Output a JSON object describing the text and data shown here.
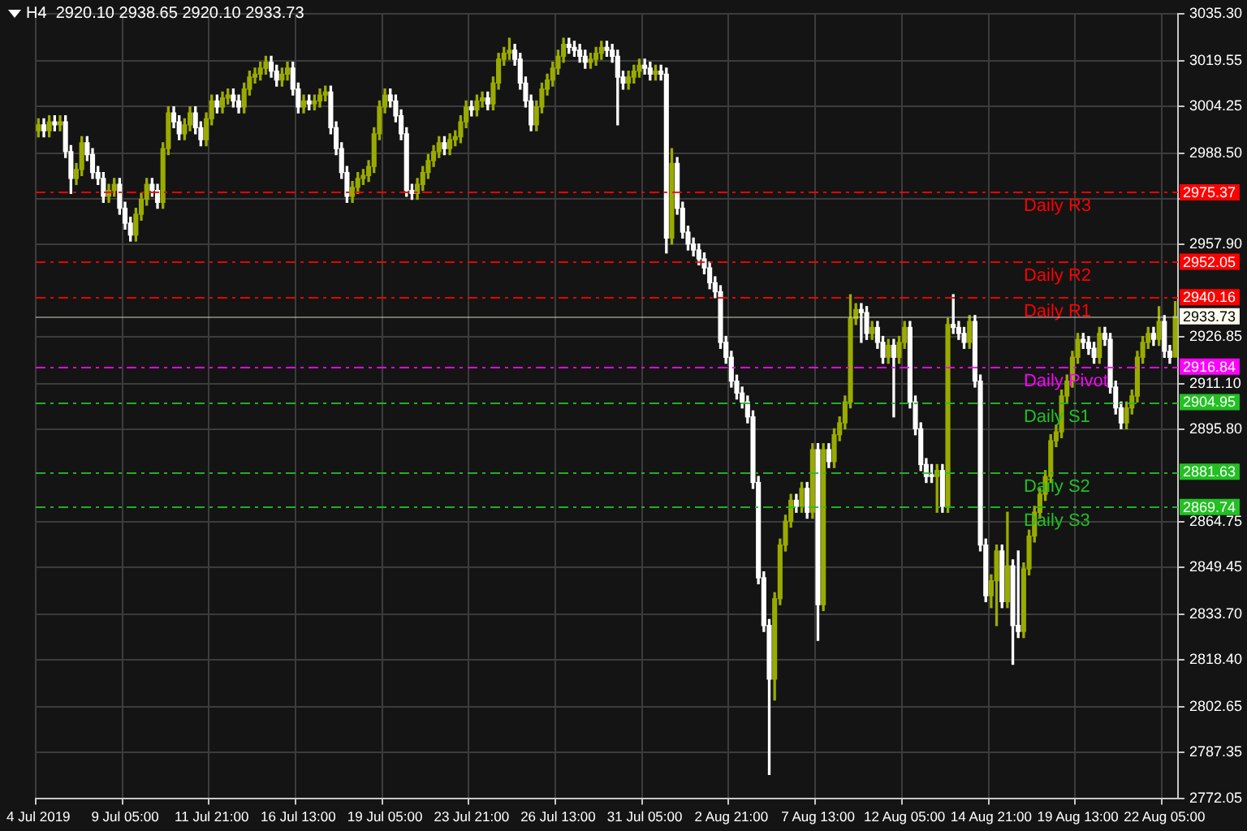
{
  "chart_data": {
    "type": "candlestick",
    "title": "H4  2920.10 2938.65 2920.10 2933.73",
    "categories": [
      "4 Jul 2019",
      null,
      null,
      null,
      null,
      null,
      null,
      null,
      null,
      null,
      null,
      null,
      null,
      null,
      null,
      null,
      "9 Jul 05:00",
      null,
      null,
      null,
      null,
      null,
      null,
      null,
      null,
      null,
      null,
      null,
      null,
      null,
      null,
      null,
      "11 Jul 21:00",
      null,
      null,
      null,
      null,
      null,
      null,
      null,
      null,
      null,
      null,
      null,
      null,
      null,
      null,
      null,
      "16 Jul 13:00",
      null,
      null,
      null,
      null,
      null,
      null,
      null,
      null,
      null,
      null,
      null,
      null,
      null,
      null,
      null,
      "19 Jul 05:00",
      null,
      null,
      null,
      null,
      null,
      null,
      null,
      null,
      null,
      null,
      null,
      null,
      null,
      null,
      null,
      "23 Jul 21:00",
      null,
      null,
      null,
      null,
      null,
      null,
      null,
      null,
      null,
      null,
      null,
      null,
      null,
      null,
      null,
      "26 Jul 13:00",
      null,
      null,
      null,
      null,
      null,
      null,
      null,
      null,
      null,
      null,
      null,
      null,
      null,
      null,
      null,
      "31 Jul 05:00",
      null,
      null,
      null,
      null,
      null,
      null,
      null,
      null,
      null,
      null,
      null,
      null,
      null,
      null,
      null,
      "2 Aug 21:00",
      null,
      null,
      null,
      null,
      null,
      null,
      null,
      null,
      null,
      null,
      null,
      null,
      null,
      null,
      null,
      "7 Aug 13:00",
      null,
      null,
      null,
      null,
      null,
      null,
      null,
      null,
      null,
      null,
      null,
      null,
      null,
      null,
      null,
      "12 Aug 05:00",
      null,
      null,
      null,
      null,
      null,
      null,
      null,
      null,
      null,
      null,
      null,
      null,
      null,
      null,
      null,
      "14 Aug 21:00",
      null,
      null,
      null,
      null,
      null,
      null,
      null,
      null,
      null,
      null,
      null,
      null,
      null,
      null,
      null,
      "19 Aug 13:00",
      null,
      null,
      null,
      null,
      null,
      null,
      null,
      null,
      null,
      null,
      null,
      null,
      null,
      null,
      null,
      "22 Aug 05:00",
      null,
      null
    ],
    "ohlc": [
      [
        2996,
        3000,
        2994,
        2998
      ],
      [
        2998,
        3000,
        2994,
        2996
      ],
      [
        2996,
        3001,
        2994,
        2999
      ],
      [
        2999,
        3001,
        2996,
        2998
      ],
      [
        2998,
        3001,
        2996,
        2999
      ],
      [
        2999,
        3001,
        2987,
        2989
      ],
      [
        2989,
        2991,
        2975,
        2980
      ],
      [
        2980,
        2985,
        2978,
        2983
      ],
      [
        2983,
        2994,
        2981,
        2992
      ],
      [
        2992,
        2994,
        2986,
        2988
      ],
      [
        2988,
        2990,
        2980,
        2982
      ],
      [
        2982,
        2984,
        2978,
        2980
      ],
      [
        2980,
        2982,
        2972,
        2974
      ],
      [
        2974,
        2978,
        2972,
        2976
      ],
      [
        2976,
        2980,
        2974,
        2978
      ],
      [
        2978,
        2980,
        2968,
        2970
      ],
      [
        2970,
        2972,
        2963,
        2965
      ],
      [
        2965,
        2967,
        2959,
        2961
      ],
      [
        2961,
        2970,
        2959,
        2968
      ],
      [
        2968,
        2975,
        2966,
        2973
      ],
      [
        2973,
        2980,
        2971,
        2978
      ],
      [
        2978,
        2980,
        2974,
        2976
      ],
      [
        2976,
        2978,
        2970,
        2972
      ],
      [
        2972,
        2992,
        2970,
        2990
      ],
      [
        2990,
        3004,
        2988,
        3002
      ],
      [
        3002,
        3004,
        2997,
        2999
      ],
      [
        2999,
        3001,
        2993,
        2995
      ],
      [
        2995,
        3000,
        2993,
        2998
      ],
      [
        2998,
        3004,
        2996,
        3002
      ],
      [
        3002,
        3004,
        2995,
        2997
      ],
      [
        2997,
        2999,
        2991,
        2993
      ],
      [
        2993,
        3002,
        2991,
        3000
      ],
      [
        3000,
        3008,
        2998,
        3006
      ],
      [
        3006,
        3008,
        3002,
        3004
      ],
      [
        3004,
        3009,
        3002,
        3007
      ],
      [
        3007,
        3010,
        3005,
        3008
      ],
      [
        3008,
        3010,
        3004,
        3006
      ],
      [
        3006,
        3008,
        3002,
        3004
      ],
      [
        3004,
        3012,
        3002,
        3010
      ],
      [
        3010,
        3016,
        3008,
        3014
      ],
      [
        3014,
        3017,
        3012,
        3015
      ],
      [
        3015,
        3019,
        3013,
        3017
      ],
      [
        3017,
        3021,
        3015,
        3019
      ],
      [
        3019,
        3021,
        3014,
        3016
      ],
      [
        3016,
        3018,
        3011,
        3013
      ],
      [
        3013,
        3017,
        3011,
        3015
      ],
      [
        3015,
        3019,
        3013,
        3017
      ],
      [
        3017,
        3019,
        3008,
        3010
      ],
      [
        3010,
        3012,
        3002,
        3004
      ],
      [
        3004,
        3008,
        3002,
        3006
      ],
      [
        3006,
        3008,
        3003,
        3005
      ],
      [
        3005,
        3008,
        3003,
        3006
      ],
      [
        3006,
        3010,
        3004,
        3008
      ],
      [
        3008,
        3011,
        3006,
        3009
      ],
      [
        3009,
        3011,
        2995,
        2997
      ],
      [
        2997,
        2999,
        2988,
        2990
      ],
      [
        2990,
        2992,
        2980,
        2982
      ],
      [
        2982,
        2984,
        2972,
        2974
      ],
      [
        2974,
        2979,
        2972,
        2977
      ],
      [
        2977,
        2982,
        2975,
        2980
      ],
      [
        2980,
        2983,
        2978,
        2981
      ],
      [
        2981,
        2986,
        2979,
        2984
      ],
      [
        2984,
        2997,
        2982,
        2995
      ],
      [
        2995,
        3006,
        2993,
        3004
      ],
      [
        3004,
        3010,
        3002,
        3008
      ],
      [
        3008,
        3010,
        3004,
        3006
      ],
      [
        3006,
        3008,
        2999,
        3001
      ],
      [
        3001,
        3003,
        2993,
        2995
      ],
      [
        2995,
        2997,
        2974,
        2976
      ],
      [
        2976,
        2978,
        2973,
        2975
      ],
      [
        2975,
        2980,
        2973,
        2978
      ],
      [
        2978,
        2984,
        2976,
        2982
      ],
      [
        2982,
        2988,
        2980,
        2986
      ],
      [
        2986,
        2991,
        2984,
        2989
      ],
      [
        2989,
        2994,
        2987,
        2992
      ],
      [
        2992,
        2994,
        2988,
        2990
      ],
      [
        2990,
        2995,
        2988,
        2993
      ],
      [
        2993,
        2996,
        2991,
        2994
      ],
      [
        2994,
        3001,
        2992,
        2999
      ],
      [
        2999,
        3006,
        2997,
        3004
      ],
      [
        3004,
        3006,
        3001,
        3003
      ],
      [
        3003,
        3008,
        3001,
        3006
      ],
      [
        3006,
        3009,
        3004,
        3007
      ],
      [
        3007,
        3009,
        3003,
        3005
      ],
      [
        3005,
        3014,
        3003,
        3012
      ],
      [
        3012,
        3022,
        3010,
        3020
      ],
      [
        3020,
        3024,
        3018,
        3022
      ],
      [
        3022,
        3027,
        3020,
        3023
      ],
      [
        3023,
        3025,
        3018,
        3020
      ],
      [
        3020,
        3022,
        3010,
        3012
      ],
      [
        3012,
        3014,
        3004,
        3006
      ],
      [
        3006,
        3008,
        2996,
        2998
      ],
      [
        2998,
        3006,
        2996,
        3004
      ],
      [
        3004,
        3012,
        3002,
        3010
      ],
      [
        3010,
        3015,
        3008,
        3013
      ],
      [
        3013,
        3019,
        3011,
        3017
      ],
      [
        3017,
        3023,
        3015,
        3021
      ],
      [
        3021,
        3027,
        3019,
        3025
      ],
      [
        3025,
        3027,
        3022,
        3024
      ],
      [
        3024,
        3026,
        3021,
        3023
      ],
      [
        3023,
        3025,
        3019,
        3021
      ],
      [
        3021,
        3023,
        3017,
        3019
      ],
      [
        3019,
        3022,
        3017,
        3020
      ],
      [
        3020,
        3024,
        3018,
        3022
      ],
      [
        3022,
        3026,
        3020,
        3024
      ],
      [
        3024,
        3026,
        3021,
        3023
      ],
      [
        3023,
        3025,
        3019,
        3021
      ],
      [
        3021,
        3023,
        2998,
        3014
      ],
      [
        3014,
        3016,
        3010,
        3012
      ],
      [
        3012,
        3016,
        3010,
        3014
      ],
      [
        3014,
        3018,
        3012,
        3016
      ],
      [
        3016,
        3020,
        3014,
        3018
      ],
      [
        3018,
        3020,
        3015,
        3017
      ],
      [
        3017,
        3019,
        3013,
        3015
      ],
      [
        3015,
        3018,
        3013,
        3016
      ],
      [
        3016,
        3018,
        3013,
        3015
      ],
      [
        3015,
        3017,
        2955,
        2960
      ],
      [
        2960,
        2990,
        2958,
        2985
      ],
      [
        2985,
        2987,
        2968,
        2970
      ],
      [
        2970,
        2972,
        2960,
        2962
      ],
      [
        2962,
        2964,
        2956,
        2958
      ],
      [
        2958,
        2960,
        2954,
        2956
      ],
      [
        2956,
        2958,
        2951,
        2953
      ],
      [
        2953,
        2955,
        2948,
        2950
      ],
      [
        2950,
        2952,
        2943,
        2945
      ],
      [
        2945,
        2947,
        2940,
        2942
      ],
      [
        2942,
        2944,
        2923,
        2925
      ],
      [
        2925,
        2927,
        2918,
        2920
      ],
      [
        2920,
        2922,
        2910,
        2912
      ],
      [
        2912,
        2914,
        2906,
        2908
      ],
      [
        2908,
        2910,
        2903,
        2905
      ],
      [
        2905,
        2907,
        2898,
        2900
      ],
      [
        2900,
        2902,
        2876,
        2878
      ],
      [
        2878,
        2880,
        2844,
        2846
      ],
      [
        2846,
        2848,
        2828,
        2830
      ],
      [
        2830,
        2832,
        2780,
        2812
      ],
      [
        2812,
        2841,
        2805,
        2839
      ],
      [
        2839,
        2859,
        2837,
        2857
      ],
      [
        2857,
        2867,
        2855,
        2865
      ],
      [
        2865,
        2874,
        2863,
        2872
      ],
      [
        2872,
        2874,
        2868,
        2870
      ],
      [
        2870,
        2878,
        2868,
        2876
      ],
      [
        2876,
        2878,
        2866,
        2868
      ],
      [
        2868,
        2891,
        2866,
        2889
      ],
      [
        2889,
        2891,
        2825,
        2837
      ],
      [
        2837,
        2891,
        2835,
        2889
      ],
      [
        2889,
        2891,
        2883,
        2885
      ],
      [
        2885,
        2896,
        2883,
        2894
      ],
      [
        2894,
        2900,
        2892,
        2898
      ],
      [
        2898,
        2907,
        2896,
        2905
      ],
      [
        2905,
        2941,
        2903,
        2933
      ],
      [
        2933,
        2938,
        2931,
        2936
      ],
      [
        2936,
        2938,
        2925,
        2935
      ],
      [
        2935,
        2937,
        2926,
        2928
      ],
      [
        2928,
        2932,
        2926,
        2930
      ],
      [
        2930,
        2932,
        2923,
        2925
      ],
      [
        2925,
        2927,
        2918,
        2920
      ],
      [
        2920,
        2926,
        2918,
        2924
      ],
      [
        2924,
        2926,
        2900,
        2920
      ],
      [
        2920,
        2927,
        2918,
        2925
      ],
      [
        2925,
        2932,
        2923,
        2930
      ],
      [
        2930,
        2932,
        2903,
        2905
      ],
      [
        2905,
        2907,
        2894,
        2896
      ],
      [
        2896,
        2898,
        2882,
        2884
      ],
      [
        2884,
        2886,
        2878,
        2880
      ],
      [
        2880,
        2884,
        2878,
        2880
      ],
      [
        2880,
        2884,
        2868,
        2882
      ],
      [
        2882,
        2884,
        2868,
        2870
      ],
      [
        2870,
        2933,
        2868,
        2931
      ],
      [
        2931,
        2941,
        2928,
        2930
      ],
      [
        2930,
        2932,
        2926,
        2928
      ],
      [
        2928,
        2930,
        2923,
        2925
      ],
      [
        2925,
        2934,
        2923,
        2932
      ],
      [
        2932,
        2934,
        2910,
        2912
      ],
      [
        2912,
        2914,
        2855,
        2857
      ],
      [
        2857,
        2859,
        2838,
        2840
      ],
      [
        2840,
        2847,
        2836,
        2845
      ],
      [
        2845,
        2857,
        2830,
        2855
      ],
      [
        2855,
        2857,
        2836,
        2838
      ],
      [
        2838,
        2868,
        2836,
        2850
      ],
      [
        2850,
        2852,
        2817,
        2830
      ],
      [
        2830,
        2855,
        2826,
        2828
      ],
      [
        2828,
        2851,
        2826,
        2849
      ],
      [
        2849,
        2862,
        2847,
        2860
      ],
      [
        2860,
        2870,
        2858,
        2868
      ],
      [
        2868,
        2876,
        2866,
        2874
      ],
      [
        2874,
        2882,
        2872,
        2880
      ],
      [
        2880,
        2894,
        2878,
        2892
      ],
      [
        2892,
        2897,
        2890,
        2895
      ],
      [
        2895,
        2909,
        2893,
        2907
      ],
      [
        2907,
        2914,
        2905,
        2912
      ],
      [
        2912,
        2922,
        2910,
        2920
      ],
      [
        2920,
        2928,
        2918,
        2926
      ],
      [
        2926,
        2928,
        2923,
        2925
      ],
      [
        2925,
        2927,
        2921,
        2923
      ],
      [
        2923,
        2925,
        2918,
        2920
      ],
      [
        2920,
        2930,
        2918,
        2928
      ],
      [
        2928,
        2930,
        2924,
        2926
      ],
      [
        2926,
        2928,
        2908,
        2910
      ],
      [
        2910,
        2912,
        2901,
        2903
      ],
      [
        2903,
        2905,
        2896,
        2898
      ],
      [
        2898,
        2905,
        2896,
        2903
      ],
      [
        2903,
        2909,
        2901,
        2907
      ],
      [
        2907,
        2922,
        2905,
        2920
      ],
      [
        2920,
        2927,
        2918,
        2925
      ],
      [
        2925,
        2930,
        2923,
        2928
      ],
      [
        2928,
        2930,
        2924,
        2926
      ],
      [
        2926,
        2937,
        2924,
        2932
      ],
      [
        2932,
        2934,
        2920,
        2922
      ],
      [
        2922,
        2924,
        2918,
        2920
      ],
      [
        2920.1,
        2938.65,
        2920.1,
        2933.73
      ]
    ],
    "colors": [
      "#9aab00",
      "#ffffff",
      "#9aab00",
      "#ffffff",
      "#9aab00",
      "#ffffff",
      "#ffffff",
      "#9aab00",
      "#9aab00",
      "#ffffff",
      "#ffffff",
      "#ffffff",
      "#ffffff",
      "#9aab00",
      "#9aab00",
      "#ffffff",
      "#ffffff",
      "#ffffff",
      "#9aab00",
      "#9aab00",
      "#9aab00",
      "#ffffff",
      "#ffffff",
      "#9aab00",
      "#9aab00",
      "#ffffff",
      "#ffffff",
      "#9aab00",
      "#9aab00",
      "#ffffff",
      "#ffffff",
      "#9aab00",
      "#9aab00",
      "#ffffff",
      "#9aab00",
      "#9aab00",
      "#ffffff",
      "#ffffff",
      "#9aab00",
      "#9aab00",
      "#9aab00",
      "#9aab00",
      "#9aab00",
      "#ffffff",
      "#ffffff",
      "#9aab00",
      "#9aab00",
      "#ffffff",
      "#ffffff",
      "#9aab00",
      "#ffffff",
      "#9aab00",
      "#9aab00",
      "#9aab00",
      "#ffffff",
      "#ffffff",
      "#ffffff",
      "#ffffff",
      "#9aab00",
      "#9aab00",
      "#9aab00",
      "#9aab00",
      "#9aab00",
      "#9aab00",
      "#9aab00",
      "#ffffff",
      "#ffffff",
      "#ffffff",
      "#ffffff",
      "#ffffff",
      "#9aab00",
      "#9aab00",
      "#9aab00",
      "#9aab00",
      "#9aab00",
      "#ffffff",
      "#9aab00",
      "#9aab00",
      "#9aab00",
      "#9aab00",
      "#ffffff",
      "#9aab00",
      "#9aab00",
      "#ffffff",
      "#9aab00",
      "#9aab00",
      "#9aab00",
      "#9aab00",
      "#ffffff",
      "#ffffff",
      "#ffffff",
      "#ffffff",
      "#9aab00",
      "#9aab00",
      "#9aab00",
      "#9aab00",
      "#9aab00",
      "#9aab00",
      "#ffffff",
      "#ffffff",
      "#ffffff",
      "#ffffff",
      "#9aab00",
      "#9aab00",
      "#9aab00",
      "#ffffff",
      "#ffffff",
      "#ffffff",
      "#ffffff",
      "#9aab00",
      "#9aab00",
      "#9aab00",
      "#ffffff",
      "#ffffff",
      "#9aab00",
      "#ffffff",
      "#ffffff",
      "#9aab00",
      "#ffffff",
      "#ffffff",
      "#ffffff",
      "#ffffff",
      "#ffffff",
      "#ffffff",
      "#ffffff",
      "#ffffff",
      "#ffffff",
      "#ffffff",
      "#ffffff",
      "#ffffff",
      "#ffffff",
      "#ffffff",
      "#ffffff",
      "#ffffff",
      "#ffffff",
      "#ffffff",
      "#9aab00",
      "#9aab00",
      "#9aab00",
      "#9aab00",
      "#ffffff",
      "#9aab00",
      "#ffffff",
      "#9aab00",
      "#ffffff",
      "#9aab00",
      "#ffffff",
      "#9aab00",
      "#9aab00",
      "#9aab00",
      "#9aab00",
      "#9aab00",
      "#ffffff",
      "#ffffff",
      "#9aab00",
      "#ffffff",
      "#ffffff",
      "#9aab00",
      "#ffffff",
      "#9aab00",
      "#9aab00",
      "#ffffff",
      "#ffffff",
      "#ffffff",
      "#ffffff",
      "#ffffff",
      "#9aab00",
      "#ffffff",
      "#9aab00",
      "#ffffff",
      "#ffffff",
      "#ffffff",
      "#9aab00",
      "#ffffff",
      "#ffffff",
      "#ffffff",
      "#9aab00",
      "#9aab00",
      "#ffffff",
      "#9aab00",
      "#ffffff",
      "#ffffff",
      "#9aab00",
      "#9aab00",
      "#9aab00",
      "#9aab00",
      "#9aab00",
      "#9aab00",
      "#9aab00",
      "#9aab00",
      "#9aab00",
      "#9aab00",
      "#9aab00",
      "#ffffff",
      "#ffffff",
      "#ffffff",
      "#9aab00",
      "#ffffff",
      "#ffffff",
      "#ffffff",
      "#ffffff",
      "#9aab00",
      "#9aab00",
      "#9aab00",
      "#9aab00",
      "#9aab00",
      "#ffffff",
      "#9aab00",
      "#ffffff",
      "#ffffff",
      "#9aab00"
    ],
    "ylim": [
      2772.05,
      3035.3
    ],
    "yticks": [
      {
        "value": 3035.3,
        "label": "3035.30"
      },
      {
        "value": 3019.55,
        "label": "3019.55"
      },
      {
        "value": 3004.25,
        "label": "3004.25"
      },
      {
        "value": 2988.5,
        "label": "2988.50"
      },
      {
        "value": 2973.2,
        "label": null
      },
      {
        "value": 2957.9,
        "label": "2957.90"
      },
      {
        "value": 2926.85,
        "label": "2926.85"
      },
      {
        "value": 2911.1,
        "label": "2911.10"
      },
      {
        "value": 2895.8,
        "label": "2895.80"
      },
      {
        "value": 2864.75,
        "label": "2864.75"
      },
      {
        "value": 2849.45,
        "label": "2849.45"
      },
      {
        "value": 2833.7,
        "label": "2833.70"
      },
      {
        "value": 2818.4,
        "label": "2818.40"
      },
      {
        "value": 2802.65,
        "label": "2802.65"
      },
      {
        "value": 2787.35,
        "label": "2787.35"
      },
      {
        "value": 2772.05,
        "label": "2772.05"
      }
    ],
    "grid": true,
    "annotations": [
      "2975.37",
      "2952.05",
      "2940.16",
      "2933.73",
      "2916.84",
      "2904.95",
      "2881.63",
      "2869.74"
    ],
    "ref_lines": [
      {
        "axis": "y",
        "value": 2975.37,
        "label": "Daily R3",
        "color": "#ff0000",
        "line_style": "dashed"
      },
      {
        "axis": "y",
        "value": 2952.05,
        "label": "Daily R2",
        "color": "#ff0000",
        "line_style": "dashed"
      },
      {
        "axis": "y",
        "value": 2940.16,
        "label": "Daily R1",
        "color": "#ff0000",
        "line_style": "dashed"
      },
      {
        "axis": "y",
        "value": 2933.73,
        "label": null,
        "color": "#fffff0",
        "line_style": "solid"
      },
      {
        "axis": "y",
        "value": 2916.84,
        "label": "Daily Pivot",
        "color": "#ff00ff",
        "line_style": "dashed"
      },
      {
        "axis": "y",
        "value": 2904.95,
        "label": "Daily S1",
        "color": "#22c022",
        "line_style": "dashed"
      },
      {
        "axis": "y",
        "value": 2881.63,
        "label": "Daily S2",
        "color": "#22c022",
        "line_style": "dashed"
      },
      {
        "axis": "y",
        "value": 2869.74,
        "label": "Daily S3",
        "color": "#22c022",
        "line_style": "dashed"
      }
    ]
  }
}
